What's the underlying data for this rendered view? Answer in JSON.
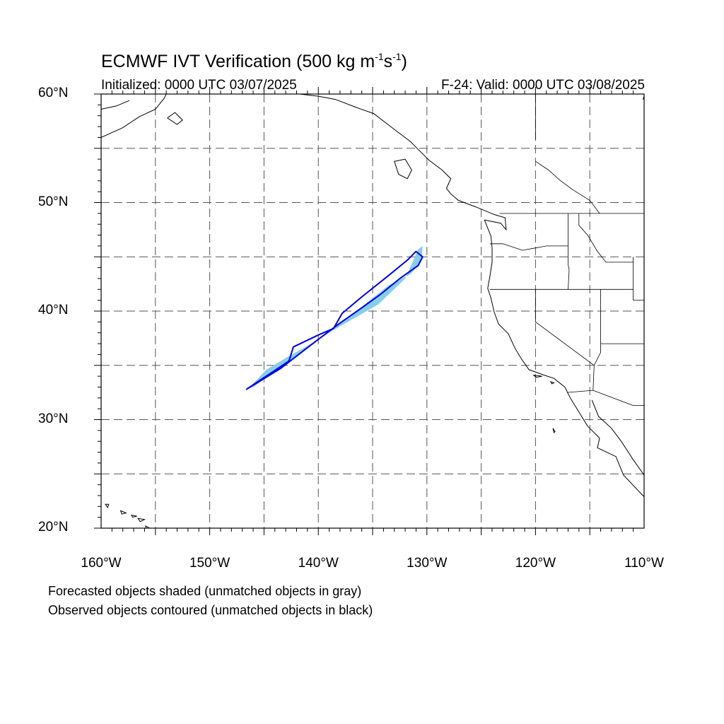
{
  "title": {
    "main": "ECMWF IVT Verification (500 kg m",
    "exp1": "-1",
    "mid": "s",
    "exp2": "-1",
    "end": ")"
  },
  "subtitle": {
    "initialized": "Initialized: 0000 UTC 03/07/2025",
    "valid": "F-24: Valid: 0000 UTC 03/08/2025"
  },
  "map": {
    "lon_range": [
      -160,
      -110
    ],
    "lat_range": [
      20,
      60
    ],
    "grid_major_lon": [
      -155,
      -150,
      -145,
      -140,
      -135,
      -130,
      -125,
      -120,
      -115
    ],
    "grid_major_lat": [
      25,
      30,
      35,
      40,
      45,
      50,
      55
    ],
    "lat_labels": [
      {
        "lat": 60,
        "text": "60°N"
      },
      {
        "lat": 50,
        "text": "50°N"
      },
      {
        "lat": 40,
        "text": "40°N"
      },
      {
        "lat": 30,
        "text": "30°N"
      },
      {
        "lat": 20,
        "text": "20°N"
      }
    ],
    "lon_labels": [
      {
        "lon": -160,
        "text": "160°W"
      },
      {
        "lon": -150,
        "text": "150°W"
      },
      {
        "lon": -140,
        "text": "140°W"
      },
      {
        "lon": -130,
        "text": "130°W"
      },
      {
        "lon": -120,
        "text": "120°W"
      },
      {
        "lon": -110,
        "text": "110°W"
      }
    ],
    "colors": {
      "forecast_fill": "#87ceeb",
      "observed_contour": "#0000e6",
      "coast": "#000000",
      "grid": "#555555"
    },
    "forecast_object": [
      [
        -146.3,
        33.0
      ],
      [
        -144.8,
        34.6
      ],
      [
        -142.8,
        35.8
      ],
      [
        -141.0,
        36.8
      ],
      [
        -138.0,
        38.6
      ],
      [
        -134.5,
        40.6
      ],
      [
        -132.0,
        43.0
      ],
      [
        -130.8,
        45.7
      ],
      [
        -130.4,
        46.0
      ],
      [
        -130.5,
        44.6
      ],
      [
        -131.5,
        43.4
      ],
      [
        -133.5,
        42.4
      ],
      [
        -136.0,
        40.4
      ],
      [
        -140.0,
        37.4
      ],
      [
        -143.5,
        34.8
      ],
      [
        -146.0,
        33.0
      ]
    ],
    "observed_object": [
      [
        -146.6,
        32.8
      ],
      [
        -144.5,
        34.2
      ],
      [
        -142.7,
        35.4
      ],
      [
        -142.3,
        36.7
      ],
      [
        -140.0,
        37.8
      ],
      [
        -138.6,
        38.4
      ],
      [
        -137.8,
        39.8
      ],
      [
        -136.0,
        41.3
      ],
      [
        -133.5,
        43.3
      ],
      [
        -131.8,
        44.7
      ],
      [
        -131.0,
        45.5
      ],
      [
        -130.4,
        45.0
      ],
      [
        -130.8,
        44.2
      ],
      [
        -132.5,
        43.0
      ],
      [
        -134.2,
        41.6
      ],
      [
        -136.0,
        40.3
      ],
      [
        -138.0,
        38.9
      ],
      [
        -140.0,
        37.4
      ],
      [
        -143.5,
        34.7
      ],
      [
        -146.6,
        32.8
      ]
    ],
    "coastlines": [
      [
        [
          -124.7,
          48.4
        ],
        [
          -124.1,
          46.9
        ],
        [
          -124.0,
          45.8
        ],
        [
          -124.0,
          44.5
        ],
        [
          -124.2,
          43.2
        ],
        [
          -124.4,
          42.1
        ],
        [
          -124.1,
          41.2
        ],
        [
          -123.8,
          39.9
        ],
        [
          -123.4,
          38.8
        ],
        [
          -122.5,
          37.9
        ],
        [
          -121.9,
          36.6
        ],
        [
          -121.3,
          35.6
        ],
        [
          -120.6,
          34.6
        ],
        [
          -119.2,
          34.1
        ],
        [
          -118.3,
          33.8
        ],
        [
          -117.3,
          33.0
        ],
        [
          -116.8,
          32.0
        ],
        [
          -116.0,
          30.7
        ],
        [
          -115.2,
          29.4
        ],
        [
          -114.1,
          28.3
        ],
        [
          -114.3,
          27.4
        ],
        [
          -112.6,
          26.6
        ],
        [
          -111.9,
          24.9
        ],
        [
          -110.3,
          23.2
        ],
        [
          -110.0,
          22.9
        ]
      ],
      [
        [
          -114.8,
          31.8
        ],
        [
          -114.2,
          30.3
        ],
        [
          -113.0,
          29.2
        ],
        [
          -112.1,
          28.0
        ],
        [
          -111.0,
          26.3
        ],
        [
          -110.0,
          24.9
        ]
      ],
      [
        [
          -124.7,
          48.4
        ],
        [
          -123.2,
          48.1
        ],
        [
          -122.7,
          47.5
        ],
        [
          -122.8,
          48.6
        ],
        [
          -123.8,
          48.9
        ],
        [
          -125.5,
          49.6
        ],
        [
          -127.1,
          50.2
        ],
        [
          -127.8,
          50.8
        ],
        [
          -128.2,
          51.3
        ]
      ],
      [
        [
          -128.2,
          51.3
        ],
        [
          -127.8,
          52.2
        ],
        [
          -128.6,
          53.0
        ],
        [
          -129.8,
          53.9
        ],
        [
          -130.7,
          54.8
        ],
        [
          -131.5,
          55.6
        ],
        [
          -133.2,
          56.9
        ],
        [
          -134.9,
          58.2
        ],
        [
          -136.6,
          58.8
        ],
        [
          -138.4,
          59.5
        ],
        [
          -140.0,
          59.8
        ],
        [
          -141.7,
          60.0
        ]
      ],
      [
        [
          -132.0,
          54.0
        ],
        [
          -131.4,
          53.0
        ],
        [
          -131.8,
          52.2
        ],
        [
          -132.6,
          52.6
        ],
        [
          -133.0,
          53.8
        ],
        [
          -132.0,
          54.0
        ]
      ],
      [
        [
          -160.0,
          56.0
        ],
        [
          -158.0,
          56.9
        ],
        [
          -156.5,
          57.9
        ],
        [
          -155.0,
          58.6
        ],
        [
          -154.2,
          59.6
        ],
        [
          -154.0,
          60.0
        ]
      ],
      [
        [
          -160.0,
          58.6
        ],
        [
          -158.6,
          58.9
        ],
        [
          -157.4,
          59.4
        ]
      ],
      [
        [
          -153.9,
          57.8
        ],
        [
          -153.0,
          57.2
        ],
        [
          -152.5,
          57.6
        ],
        [
          -153.2,
          58.3
        ],
        [
          -153.9,
          57.8
        ]
      ],
      [
        [
          -110.1,
          59.5
        ],
        [
          -110.0,
          59.8
        ]
      ]
    ],
    "islands": [
      [
        [
          -159.6,
          22.2
        ],
        [
          -159.3,
          22.2
        ],
        [
          -159.4,
          21.9
        ],
        [
          -159.6,
          22.2
        ]
      ],
      [
        [
          -158.2,
          21.6
        ],
        [
          -157.7,
          21.4
        ],
        [
          -158.1,
          21.3
        ],
        [
          -158.2,
          21.6
        ]
      ],
      [
        [
          -157.2,
          21.2
        ],
        [
          -156.7,
          21.1
        ],
        [
          -157.1,
          21.0
        ],
        [
          -157.2,
          21.2
        ]
      ],
      [
        [
          -156.6,
          20.9
        ],
        [
          -156.0,
          20.8
        ],
        [
          -156.4,
          20.6
        ],
        [
          -156.6,
          20.9
        ]
      ],
      [
        [
          -155.9,
          20.2
        ],
        [
          -155.0,
          19.7
        ],
        [
          -155.6,
          19.0
        ],
        [
          -155.9,
          20.2
        ]
      ],
      [
        [
          -118.6,
          33.5
        ],
        [
          -118.3,
          33.4
        ],
        [
          -118.5,
          33.3
        ],
        [
          -118.6,
          33.5
        ]
      ],
      [
        [
          -120.2,
          34.1
        ],
        [
          -119.4,
          34.0
        ],
        [
          -119.9,
          33.9
        ],
        [
          -120.2,
          34.1
        ]
      ],
      [
        [
          -118.4,
          29.2
        ],
        [
          -118.2,
          28.9
        ],
        [
          -118.3,
          28.8
        ],
        [
          -118.4,
          29.2
        ]
      ]
    ],
    "borders": [
      [
        [
          -123.3,
          49.0
        ],
        [
          -110.0,
          49.0
        ]
      ],
      [
        [
          -124.2,
          46.2
        ],
        [
          -123.0,
          46.2
        ],
        [
          -121.2,
          45.6
        ],
        [
          -119.0,
          46.0
        ],
        [
          -117.0,
          46.0
        ]
      ],
      [
        [
          -117.0,
          49.0
        ],
        [
          -117.0,
          44.3
        ],
        [
          -116.9,
          43.8
        ],
        [
          -117.0,
          42.0
        ]
      ],
      [
        [
          -124.2,
          42.0
        ],
        [
          -111.0,
          42.0
        ]
      ],
      [
        [
          -114.0,
          42.0
        ],
        [
          -114.0,
          36.2
        ],
        [
          -114.6,
          35.0
        ]
      ],
      [
        [
          -120.0,
          42.0
        ],
        [
          -120.0,
          39.0
        ],
        [
          -114.6,
          35.0
        ],
        [
          -114.7,
          32.7
        ]
      ],
      [
        [
          -117.1,
          32.5
        ],
        [
          -114.7,
          32.7
        ],
        [
          -111.0,
          31.3
        ],
        [
          -110.0,
          31.3
        ]
      ],
      [
        [
          -116.0,
          49.0
        ],
        [
          -116.0,
          47.9
        ],
        [
          -115.2,
          47.0
        ],
        [
          -114.3,
          45.5
        ],
        [
          -113.5,
          44.5
        ],
        [
          -111.0,
          44.5
        ]
      ],
      [
        [
          -111.0,
          45.0
        ],
        [
          -111.0,
          41.0
        ],
        [
          -110.0,
          41.0
        ]
      ],
      [
        [
          -114.0,
          37.0
        ],
        [
          -110.0,
          37.0
        ]
      ],
      [
        [
          -120.0,
          55.8
        ],
        [
          -120.0,
          60.0
        ]
      ],
      [
        [
          -120.0,
          53.8
        ],
        [
          -118.8,
          53.0
        ],
        [
          -117.8,
          52.1
        ],
        [
          -116.6,
          51.2
        ],
        [
          -115.0,
          50.2
        ],
        [
          -114.1,
          49.0
        ]
      ]
    ]
  },
  "footnotes": [
    "Forecasted objects shaded (unmatched objects in gray)",
    "Observed objects contoured (unmatched objects in black)"
  ]
}
